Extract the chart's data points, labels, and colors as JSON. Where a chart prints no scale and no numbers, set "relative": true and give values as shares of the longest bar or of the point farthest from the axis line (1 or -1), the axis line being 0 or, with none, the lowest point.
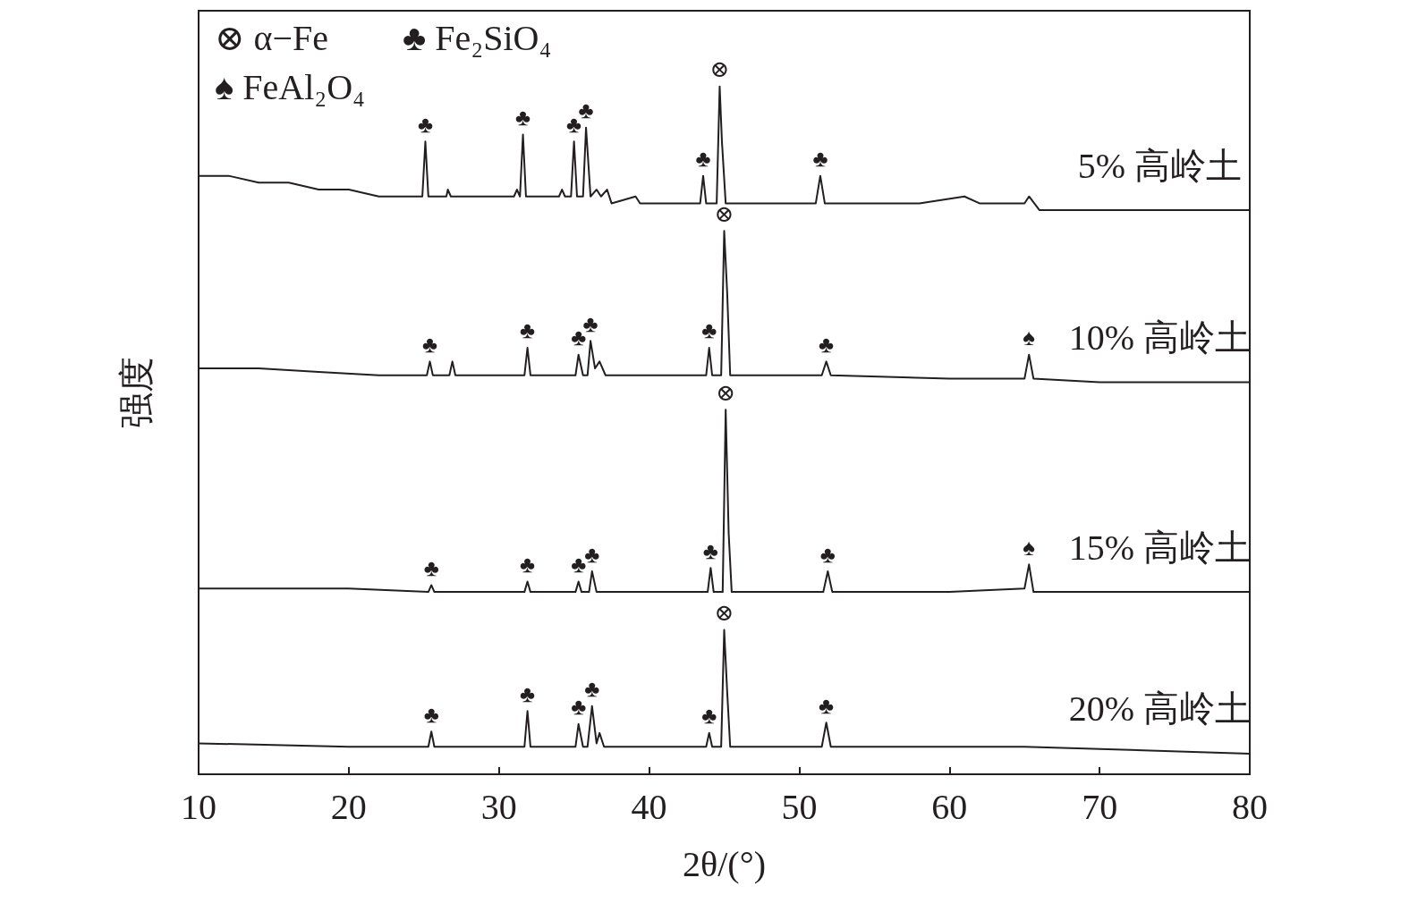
{
  "chart_data": {
    "type": "line",
    "relative": true,
    "xlabel": "2θ/(°)",
    "ylabel": "强度",
    "xlim": [
      10,
      80
    ],
    "xticks": [
      10,
      20,
      30,
      40,
      50,
      60,
      70,
      80
    ],
    "tick_labels": "x",
    "marker": "none",
    "line_style": "solid",
    "series": [
      {
        "name": "5% 高岭土",
        "color": "#231f20",
        "x": [
          10,
          12,
          14,
          16,
          18,
          20,
          22,
          24.9,
          25.1,
          25.3,
          26.5,
          26.6,
          26.8,
          28,
          31,
          31.2,
          31.4,
          31.6,
          31.8,
          34,
          34.2,
          34.4,
          34.8,
          35.0,
          35.2,
          35.6,
          35.8,
          36.1,
          36.5,
          36.8,
          37.2,
          37.5,
          39.1,
          39.4,
          43.4,
          43.6,
          43.8,
          44.5,
          44.7,
          44.85,
          45.1,
          51.1,
          51.4,
          51.7,
          58,
          61,
          62,
          65,
          65.3,
          66,
          70,
          75,
          80
        ],
        "values": [
          0.87,
          0.87,
          0.86,
          0.86,
          0.85,
          0.85,
          0.84,
          0.84,
          0.92,
          0.84,
          0.84,
          0.85,
          0.84,
          0.84,
          0.84,
          0.85,
          0.84,
          0.93,
          0.84,
          0.84,
          0.85,
          0.84,
          0.84,
          0.92,
          0.84,
          0.84,
          0.94,
          0.84,
          0.85,
          0.84,
          0.85,
          0.83,
          0.84,
          0.83,
          0.83,
          0.87,
          0.83,
          0.83,
          1.0,
          0.92,
          0.83,
          0.83,
          0.87,
          0.83,
          0.83,
          0.84,
          0.83,
          0.83,
          0.84,
          0.82,
          0.82,
          0.82,
          0.82
        ]
      },
      {
        "name": "10% 高岭土",
        "color": "#231f20",
        "x": [
          10,
          14,
          18,
          22,
          25.2,
          25.4,
          25.6,
          26.7,
          26.9,
          27.1,
          30,
          31.7,
          31.9,
          32.1,
          35.1,
          35.3,
          35.6,
          35.9,
          36.1,
          36.4,
          36.7,
          37.1,
          43.8,
          44.0,
          44.2,
          44.8,
          45.0,
          45.2,
          45.4,
          51.5,
          51.8,
          52.1,
          60,
          65,
          65.3,
          65.6,
          70,
          80
        ],
        "values": [
          0.59,
          0.59,
          0.585,
          0.58,
          0.58,
          0.6,
          0.58,
          0.58,
          0.6,
          0.58,
          0.58,
          0.58,
          0.62,
          0.58,
          0.58,
          0.61,
          0.58,
          0.58,
          0.63,
          0.59,
          0.6,
          0.58,
          0.58,
          0.62,
          0.58,
          0.58,
          0.79,
          0.7,
          0.58,
          0.58,
          0.6,
          0.58,
          0.575,
          0.575,
          0.61,
          0.575,
          0.57,
          0.57
        ]
      },
      {
        "name": "15% 高岭土",
        "color": "#231f20",
        "x": [
          10,
          20,
          25.3,
          25.5,
          25.7,
          31.7,
          31.9,
          32.1,
          35.1,
          35.3,
          35.5,
          36.0,
          36.2,
          36.5,
          43.9,
          44.1,
          44.3,
          44.9,
          45.1,
          45.3,
          45.5,
          51.6,
          51.9,
          52.2,
          60,
          65,
          65.3,
          65.6,
          80
        ],
        "values": [
          0.27,
          0.27,
          0.265,
          0.275,
          0.265,
          0.265,
          0.28,
          0.265,
          0.265,
          0.28,
          0.265,
          0.265,
          0.295,
          0.265,
          0.265,
          0.3,
          0.265,
          0.265,
          0.53,
          0.35,
          0.265,
          0.265,
          0.295,
          0.265,
          0.265,
          0.27,
          0.305,
          0.265,
          0.265
        ]
      },
      {
        "name": "20% 高岭土",
        "color": "#231f20",
        "x": [
          10,
          20,
          25.3,
          25.5,
          25.7,
          31.7,
          31.9,
          32.1,
          35.1,
          35.3,
          35.6,
          35.9,
          36.2,
          36.5,
          36.7,
          37,
          43.8,
          44.0,
          44.2,
          44.8,
          45.0,
          45.2,
          45.4,
          51.5,
          51.8,
          52.1,
          65,
          80
        ],
        "values": [
          0.045,
          0.04,
          0.04,
          0.062,
          0.04,
          0.04,
          0.092,
          0.04,
          0.04,
          0.073,
          0.04,
          0.04,
          0.099,
          0.045,
          0.06,
          0.04,
          0.04,
          0.06,
          0.04,
          0.04,
          0.21,
          0.12,
          0.04,
          0.04,
          0.075,
          0.04,
          0.04,
          0.03
        ]
      }
    ],
    "annotations": [
      "⊗ α−Fe",
      "♣ Fe₂SiO₄",
      "♠ FeAl₂O₄",
      {
        "text": "♣",
        "x": 25.1,
        "y": 0.92
      },
      {
        "text": "♣",
        "x": 31.6,
        "y": 0.93
      },
      {
        "text": "♣",
        "x": 35.0,
        "y": 0.92
      },
      {
        "text": "♣",
        "x": 35.8,
        "y": 0.94
      },
      {
        "text": "♣",
        "x": 43.6,
        "y": 0.87
      },
      {
        "text": "⊗",
        "x": 44.7,
        "y": 1.0
      },
      {
        "text": "♣",
        "x": 51.4,
        "y": 0.87
      },
      {
        "text": "♣",
        "x": 25.4,
        "y": 0.6
      },
      {
        "text": "♣",
        "x": 31.9,
        "y": 0.62
      },
      {
        "text": "♣",
        "x": 35.3,
        "y": 0.61
      },
      {
        "text": "♣",
        "x": 36.1,
        "y": 0.63
      },
      {
        "text": "♣",
        "x": 44.0,
        "y": 0.62
      },
      {
        "text": "⊗",
        "x": 45.0,
        "y": 0.79
      },
      {
        "text": "♣",
        "x": 51.8,
        "y": 0.6
      },
      {
        "text": "♠",
        "x": 65.3,
        "y": 0.61
      },
      {
        "text": "♣",
        "x": 25.5,
        "y": 0.275
      },
      {
        "text": "♣",
        "x": 31.9,
        "y": 0.28
      },
      {
        "text": "♣",
        "x": 35.3,
        "y": 0.28
      },
      {
        "text": "♣",
        "x": 36.2,
        "y": 0.295
      },
      {
        "text": "♣",
        "x": 44.1,
        "y": 0.3
      },
      {
        "text": "⊗",
        "x": 45.1,
        "y": 0.53
      },
      {
        "text": "♣",
        "x": 51.9,
        "y": 0.295
      },
      {
        "text": "♠",
        "x": 65.3,
        "y": 0.305
      },
      {
        "text": "♣",
        "x": 25.5,
        "y": 0.062
      },
      {
        "text": "♣",
        "x": 31.9,
        "y": 0.092
      },
      {
        "text": "♣",
        "x": 35.3,
        "y": 0.073
      },
      {
        "text": "♣",
        "x": 36.2,
        "y": 0.099
      },
      {
        "text": "♣",
        "x": 44.0,
        "y": 0.06
      },
      {
        "text": "⊗",
        "x": 45.0,
        "y": 0.21
      },
      {
        "text": "♣",
        "x": 51.8,
        "y": 0.075
      }
    ]
  }
}
